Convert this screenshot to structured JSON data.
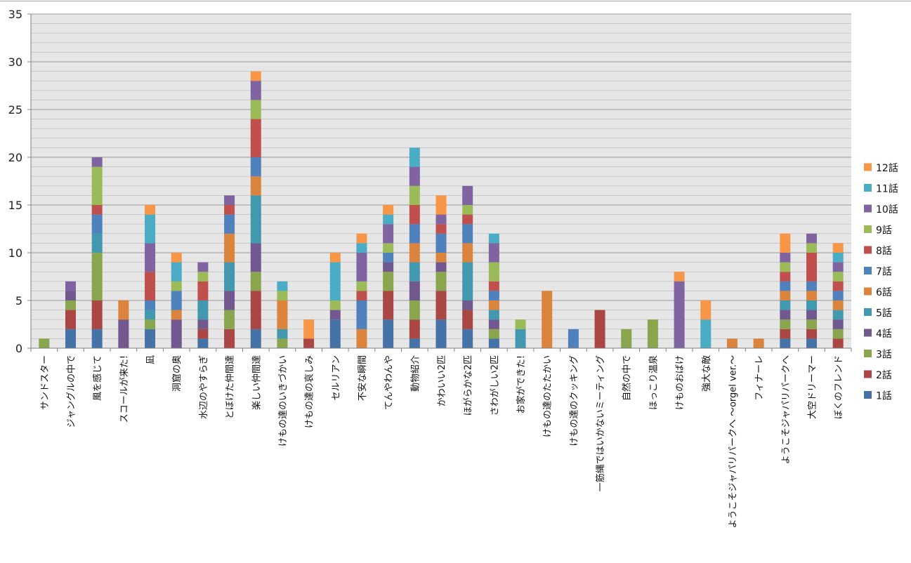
{
  "chart_data": {
    "type": "bar",
    "stacked": true,
    "ylim": [
      0,
      35
    ],
    "yticks": [
      0,
      5,
      10,
      15,
      20,
      25,
      30,
      35
    ],
    "grid": true,
    "legend_position": "right",
    "categories": [
      "サンドスター",
      "ジャングルの中で",
      "風を感じて",
      "スコールが来た!",
      "凪",
      "洞窟の奥",
      "水辺のやすらぎ",
      "とぼけた仲間達",
      "楽しい仲間達",
      "けもの達のいきづかい",
      "けもの達の哀しみ",
      "セルリアン",
      "不安な瞬間",
      "てんやわんや",
      "動物紹介",
      "かわいい2匹",
      "ほがらかな2匹",
      "さわがしい2匹",
      "お家ができた!",
      "けもの達のたたかい",
      "けもの達のクッキング",
      "一筋縄ではいかないミーティング",
      "自然の中で",
      "ほっこり温泉",
      "けものおばけ",
      "強大な敵",
      "ようこそジャパリパークへ ～orgel ver.～",
      "フィナーレ",
      "ようこそジャパリパークへ",
      "大空ドリーマー",
      "ぼくのフレンド"
    ],
    "series": [
      {
        "name": "1話",
        "color": "#4572a7",
        "values": [
          0,
          2,
          2,
          0,
          2,
          0,
          1,
          0,
          2,
          0,
          0,
          3,
          0,
          3,
          1,
          3,
          2,
          1,
          0,
          0,
          0,
          0,
          0,
          0,
          0,
          0,
          0,
          0,
          1,
          1,
          0
        ]
      },
      {
        "name": "2話",
        "color": "#aa4643",
        "values": [
          0,
          2,
          3,
          0,
          0,
          0,
          1,
          2,
          4,
          0,
          1,
          0,
          0,
          3,
          2,
          3,
          2,
          0,
          0,
          0,
          0,
          4,
          0,
          0,
          0,
          0,
          0,
          0,
          1,
          1,
          1
        ]
      },
      {
        "name": "3話",
        "color": "#89a54e",
        "values": [
          1,
          1,
          5,
          0,
          1,
          0,
          0,
          2,
          2,
          1,
          0,
          0,
          0,
          2,
          2,
          2,
          0,
          1,
          0,
          0,
          0,
          0,
          2,
          3,
          0,
          0,
          0,
          0,
          1,
          1,
          1
        ]
      },
      {
        "name": "4話",
        "color": "#71588f",
        "values": [
          0,
          1,
          0,
          3,
          0,
          3,
          1,
          2,
          3,
          0,
          0,
          1,
          0,
          1,
          2,
          1,
          1,
          1,
          0,
          0,
          0,
          0,
          0,
          0,
          0,
          0,
          0,
          0,
          1,
          1,
          1
        ]
      },
      {
        "name": "5話",
        "color": "#4198af",
        "values": [
          0,
          0,
          2,
          0,
          1,
          0,
          2,
          3,
          5,
          1,
          0,
          0,
          0,
          0,
          2,
          0,
          4,
          1,
          2,
          0,
          0,
          0,
          0,
          0,
          0,
          0,
          0,
          0,
          1,
          1,
          1
        ]
      },
      {
        "name": "6話",
        "color": "#db843d",
        "values": [
          0,
          0,
          0,
          2,
          0,
          1,
          0,
          3,
          2,
          3,
          0,
          0,
          2,
          0,
          2,
          1,
          2,
          1,
          0,
          6,
          0,
          0,
          0,
          0,
          0,
          0,
          1,
          1,
          1,
          1,
          1
        ]
      },
      {
        "name": "7話",
        "color": "#4f81bd",
        "values": [
          0,
          0,
          2,
          0,
          1,
          2,
          0,
          2,
          2,
          0,
          0,
          0,
          3,
          1,
          2,
          2,
          2,
          1,
          0,
          0,
          2,
          0,
          0,
          0,
          0,
          0,
          0,
          0,
          1,
          1,
          1
        ]
      },
      {
        "name": "8話",
        "color": "#c0504d",
        "values": [
          0,
          0,
          1,
          0,
          3,
          0,
          2,
          1,
          4,
          0,
          0,
          0,
          1,
          0,
          2,
          1,
          1,
          1,
          0,
          0,
          0,
          0,
          0,
          0,
          0,
          0,
          0,
          0,
          1,
          3,
          1
        ]
      },
      {
        "name": "9話",
        "color": "#9bbb59",
        "values": [
          0,
          0,
          4,
          0,
          0,
          1,
          1,
          0,
          2,
          1,
          0,
          1,
          1,
          1,
          2,
          0,
          1,
          2,
          1,
          0,
          0,
          0,
          0,
          0,
          0,
          0,
          0,
          0,
          1,
          1,
          1
        ]
      },
      {
        "name": "10話",
        "color": "#8064a2",
        "values": [
          0,
          1,
          1,
          0,
          3,
          0,
          1,
          1,
          2,
          0,
          0,
          0,
          3,
          2,
          2,
          1,
          2,
          2,
          0,
          0,
          0,
          0,
          0,
          0,
          7,
          0,
          0,
          0,
          1,
          1,
          1
        ]
      },
      {
        "name": "11話",
        "color": "#4bacc6",
        "values": [
          0,
          0,
          0,
          0,
          3,
          2,
          0,
          0,
          0,
          1,
          0,
          4,
          1,
          1,
          2,
          0,
          0,
          1,
          0,
          0,
          0,
          0,
          0,
          0,
          0,
          3,
          0,
          0,
          0,
          0,
          1
        ]
      },
      {
        "name": "12話",
        "color": "#f79646",
        "values": [
          0,
          0,
          0,
          0,
          1,
          1,
          0,
          0,
          1,
          0,
          2,
          1,
          1,
          1,
          0,
          2,
          0,
          0,
          0,
          0,
          0,
          0,
          0,
          0,
          1,
          2,
          0,
          0,
          2,
          0,
          1
        ]
      }
    ]
  }
}
